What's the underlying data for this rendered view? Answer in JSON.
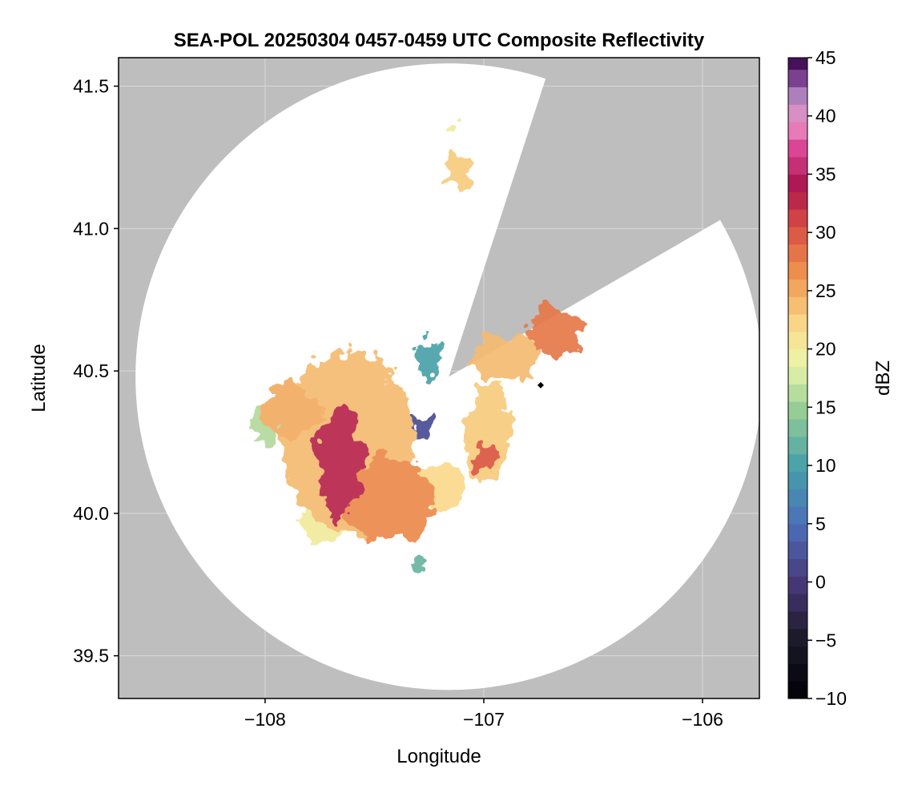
{
  "chart_data": {
    "type": "heatmap",
    "title": "SEA-POL 20250304 0457-0459 UTC Composite Reflectivity",
    "xlabel": "Longitude",
    "ylabel": "Latitude",
    "xlim": [
      -108.67,
      -105.74
    ],
    "ylim": [
      39.35,
      41.6
    ],
    "x_ticks": [
      -108,
      -107,
      -106
    ],
    "x_tick_labels": [
      "−108",
      "−107",
      "−106"
    ],
    "y_ticks": [
      39.5,
      40.0,
      40.5,
      41.0,
      41.5
    ],
    "y_tick_labels": [
      "39.5",
      "40.0",
      "40.5",
      "41.0",
      "41.5"
    ],
    "grid": true,
    "radar": {
      "center_lon": -107.16,
      "center_lat": 40.48,
      "range_lat_deg": 1.1,
      "blocked_sector_azimuth_deg": [
        18,
        60
      ]
    },
    "colorbar": {
      "label": "dBZ",
      "min": -10,
      "max": 45,
      "step": 1.5,
      "ticks": [
        -10,
        -5,
        0,
        5,
        10,
        15,
        20,
        25,
        30,
        35,
        40,
        45
      ],
      "tick_labels": [
        "−10",
        "−5",
        "0",
        "5",
        "10",
        "15",
        "20",
        "25",
        "30",
        "35",
        "40",
        "45"
      ],
      "colormap": "spectral-reverse"
    },
    "colors": {
      "no_coverage": "#bebebe",
      "coverage": "#ffffff",
      "grid": "#d9d9d9"
    },
    "echoes": [
      {
        "lon": -107.62,
        "lat": 40.25,
        "r_lon": 0.3,
        "r_lat": 0.32,
        "dbz": 24
      },
      {
        "lon": -107.66,
        "lat": 40.18,
        "r_lon": 0.1,
        "r_lat": 0.2,
        "dbz": 33
      },
      {
        "lon": -107.88,
        "lat": 40.36,
        "r_lon": 0.14,
        "r_lat": 0.08,
        "dbz": 25
      },
      {
        "lon": -108.0,
        "lat": 40.3,
        "r_lon": 0.07,
        "r_lat": 0.07,
        "dbz": 16
      },
      {
        "lon": -107.43,
        "lat": 40.05,
        "r_lon": 0.2,
        "r_lat": 0.15,
        "dbz": 27
      },
      {
        "lon": -107.2,
        "lat": 40.1,
        "r_lon": 0.12,
        "r_lat": 0.08,
        "dbz": 22
      },
      {
        "lon": -107.7,
        "lat": 39.97,
        "r_lon": 0.14,
        "r_lat": 0.06,
        "dbz": 20
      },
      {
        "lon": -106.98,
        "lat": 40.28,
        "r_lon": 0.1,
        "r_lat": 0.18,
        "dbz": 23
      },
      {
        "lon": -107.0,
        "lat": 40.2,
        "r_lon": 0.05,
        "r_lat": 0.05,
        "dbz": 30
      },
      {
        "lon": -106.9,
        "lat": 40.55,
        "r_lon": 0.16,
        "r_lat": 0.08,
        "dbz": 24
      },
      {
        "lon": -106.67,
        "lat": 40.64,
        "r_lon": 0.12,
        "r_lat": 0.09,
        "dbz": 28
      },
      {
        "lon": -107.25,
        "lat": 40.55,
        "r_lon": 0.05,
        "r_lat": 0.07,
        "dbz": 10
      },
      {
        "lon": -107.3,
        "lat": 40.3,
        "r_lon": 0.07,
        "r_lat": 0.03,
        "dbz": 2
      },
      {
        "lon": -107.12,
        "lat": 41.2,
        "r_lon": 0.05,
        "r_lat": 0.07,
        "dbz": 23
      },
      {
        "lon": -107.15,
        "lat": 41.35,
        "r_lon": 0.02,
        "r_lat": 0.01,
        "dbz": 20
      },
      {
        "lon": -107.29,
        "lat": 39.83,
        "r_lon": 0.03,
        "r_lat": 0.02,
        "dbz": 12
      }
    ],
    "markers": [
      {
        "lon": -106.74,
        "lat": 40.45,
        "shape": "diamond",
        "color": "#000000"
      }
    ]
  }
}
